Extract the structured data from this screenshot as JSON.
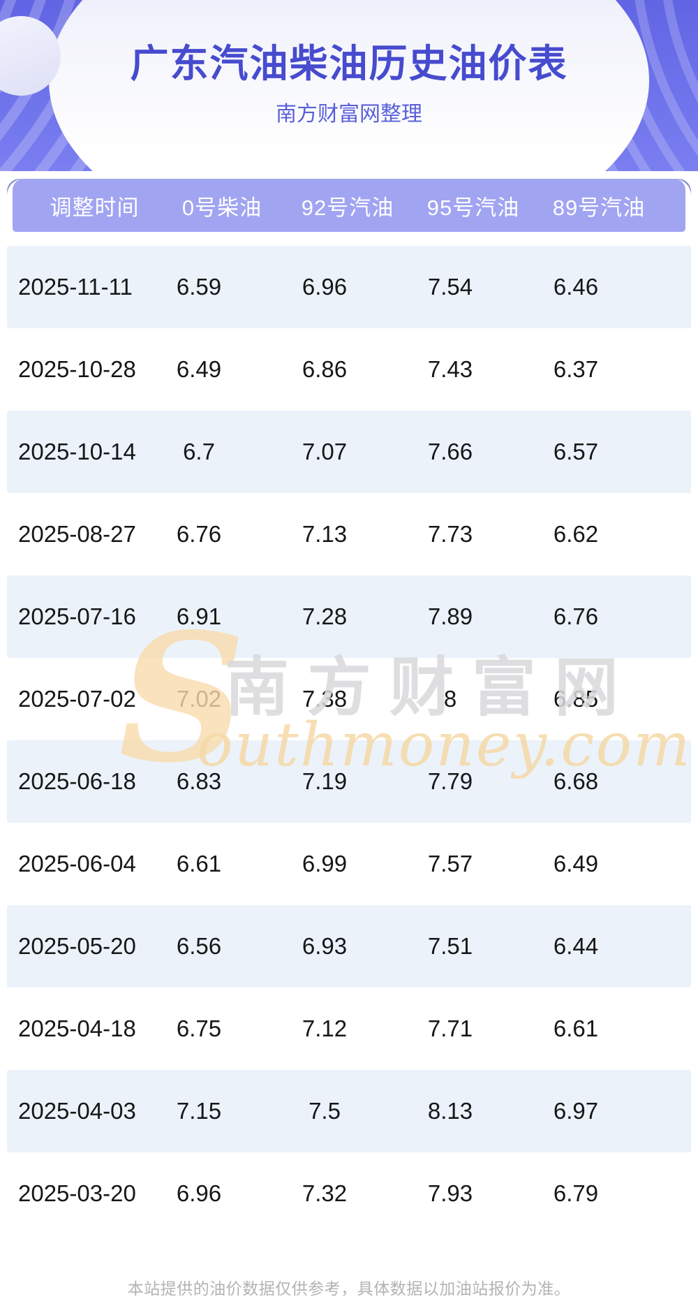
{
  "banner": {
    "title": "广东汽油柴油历史油价表",
    "subtitle": "南方财富网整理"
  },
  "table": {
    "columns": [
      "调整时间",
      "0号柴油",
      "92号汽油",
      "95号汽油",
      "89号汽油"
    ],
    "rows": [
      [
        "2025-11-11",
        "6.59",
        "6.96",
        "7.54",
        "6.46"
      ],
      [
        "2025-10-28",
        "6.49",
        "6.86",
        "7.43",
        "6.37"
      ],
      [
        "2025-10-14",
        "6.7",
        "7.07",
        "7.66",
        "6.57"
      ],
      [
        "2025-08-27",
        "6.76",
        "7.13",
        "7.73",
        "6.62"
      ],
      [
        "2025-07-16",
        "6.91",
        "7.28",
        "7.89",
        "6.76"
      ],
      [
        "2025-07-02",
        "7.02",
        "7.38",
        "8",
        "6.85"
      ],
      [
        "2025-06-18",
        "6.83",
        "7.19",
        "7.79",
        "6.68"
      ],
      [
        "2025-06-04",
        "6.61",
        "6.99",
        "7.57",
        "6.49"
      ],
      [
        "2025-05-20",
        "6.56",
        "6.93",
        "7.51",
        "6.44"
      ],
      [
        "2025-04-18",
        "6.75",
        "7.12",
        "7.71",
        "6.61"
      ],
      [
        "2025-04-03",
        "7.15",
        "7.5",
        "8.13",
        "6.97"
      ],
      [
        "2025-03-20",
        "6.96",
        "7.32",
        "7.93",
        "6.79"
      ]
    ]
  },
  "watermark": {
    "initial": "S",
    "script": "outhmoney.com",
    "cn": "南方财富网"
  },
  "footer": {
    "disclaimer": "本站提供的油价数据仅供参考，具体数据以加油站报价为准。"
  },
  "colors": {
    "banner_purple": "#6A6EE8",
    "header_bar": "#A0A4F1",
    "back_bar": "#8C90CF",
    "row_alt": "#EBF2FA",
    "title_text": "#474BCE",
    "subtitle_text": "#5A5FD9",
    "watermark_orange": "#F6D9A6",
    "footer_text": "#B3B3B5"
  }
}
